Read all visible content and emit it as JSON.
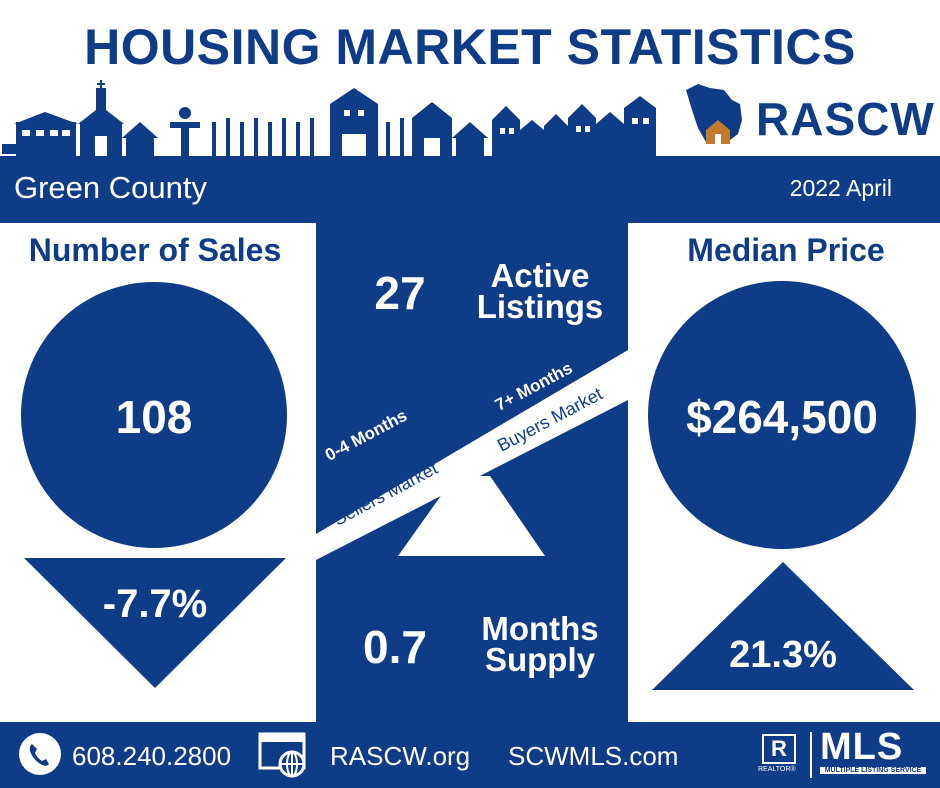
{
  "title": "HOUSING MARKET STATISTICS",
  "brand": {
    "name": "RASCW",
    "color": "#0f3c86",
    "accent": "#c27b2c"
  },
  "region": "Green County",
  "period": "2022 April",
  "sales": {
    "heading": "Number of Sales",
    "value": "108",
    "change": "-7.7%",
    "direction": "down"
  },
  "median": {
    "heading": "Median Price",
    "value": "$264,500",
    "change": "21.3%",
    "direction": "up"
  },
  "listings": {
    "value": "27",
    "label_line1": "Active",
    "label_line2": "Listings"
  },
  "supply": {
    "value": "0.7",
    "label_line1": "Months",
    "label_line2": "Supply"
  },
  "seesaw": {
    "left_line1": "0-4 Months",
    "left_line2": "Sellers Market",
    "right_line1": "7+ Months",
    "right_line2": "Buyers Market"
  },
  "footer": {
    "phone_icon": "phone-icon",
    "phone": "608.240.2800",
    "web_icon": "website-icon",
    "site1": "RASCW.org",
    "site2": "SCWMLS.com",
    "realtor_mark": "R",
    "realtor_caption": "REALTOR®",
    "mls_logo": "MLS",
    "mls_caption": "MULTIPLE LISTING SERVICE"
  }
}
